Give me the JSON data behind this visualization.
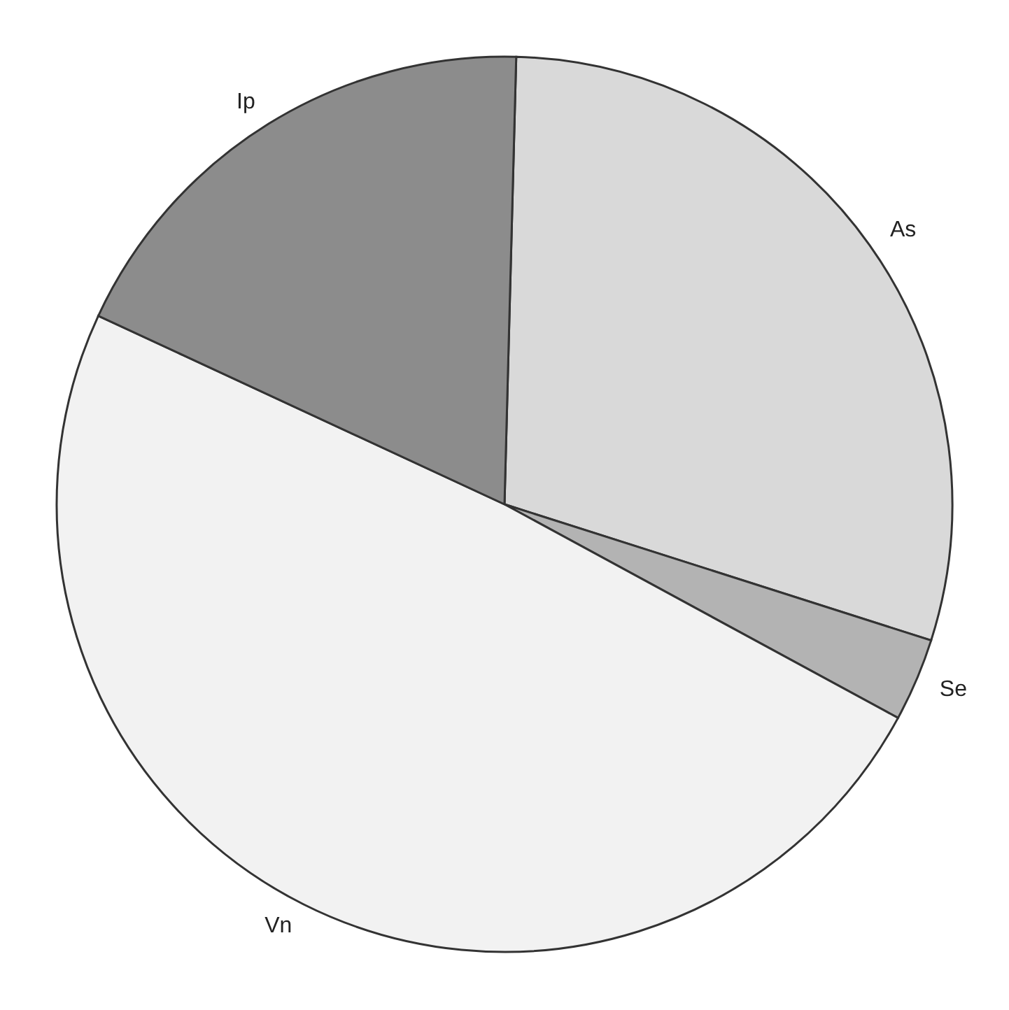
{
  "chart_data": {
    "type": "pie",
    "categories": [
      "As",
      "Se",
      "Vn",
      "Ip"
    ],
    "values": [
      29.5,
      3.0,
      49.0,
      18.5
    ],
    "colors": [
      "#d9d9d9",
      "#b3b3b3",
      "#f2f2f2",
      "#8c8c8c"
    ]
  }
}
